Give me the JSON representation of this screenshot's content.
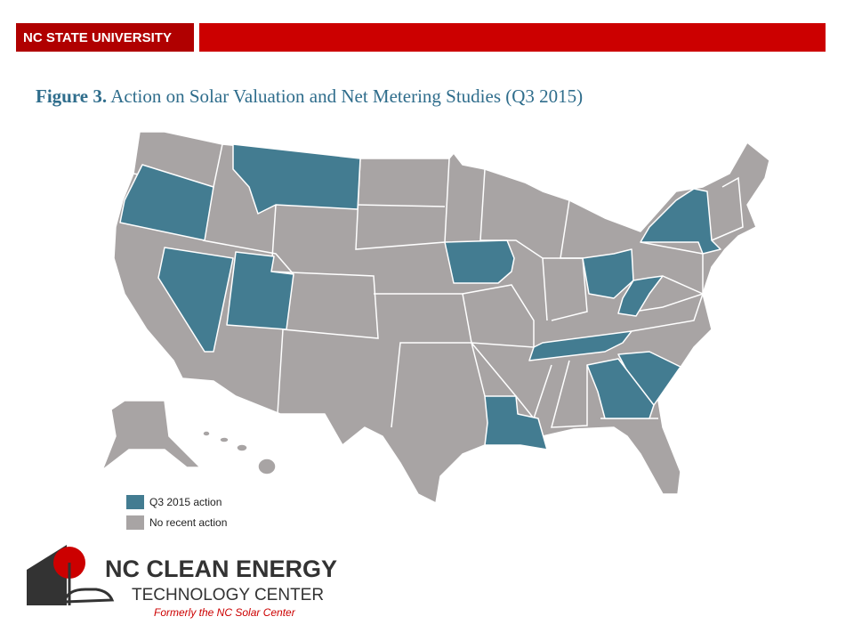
{
  "header": {
    "brand": "NC STATE UNIVERSITY"
  },
  "figure": {
    "label": "Figure 3.",
    "title": "Action on Solar Valuation and Net Metering Studies (Q3 2015)"
  },
  "legend": [
    {
      "label": "Q3 2015 action",
      "color": "#437c91"
    },
    {
      "label": "No recent action",
      "color": "#a8a4a4"
    }
  ],
  "logo": {
    "line1": "NC CLEAN ENERGY",
    "line2": "TECHNOLOGY CENTER",
    "tagline": "Formerly the NC Solar Center"
  }
}
